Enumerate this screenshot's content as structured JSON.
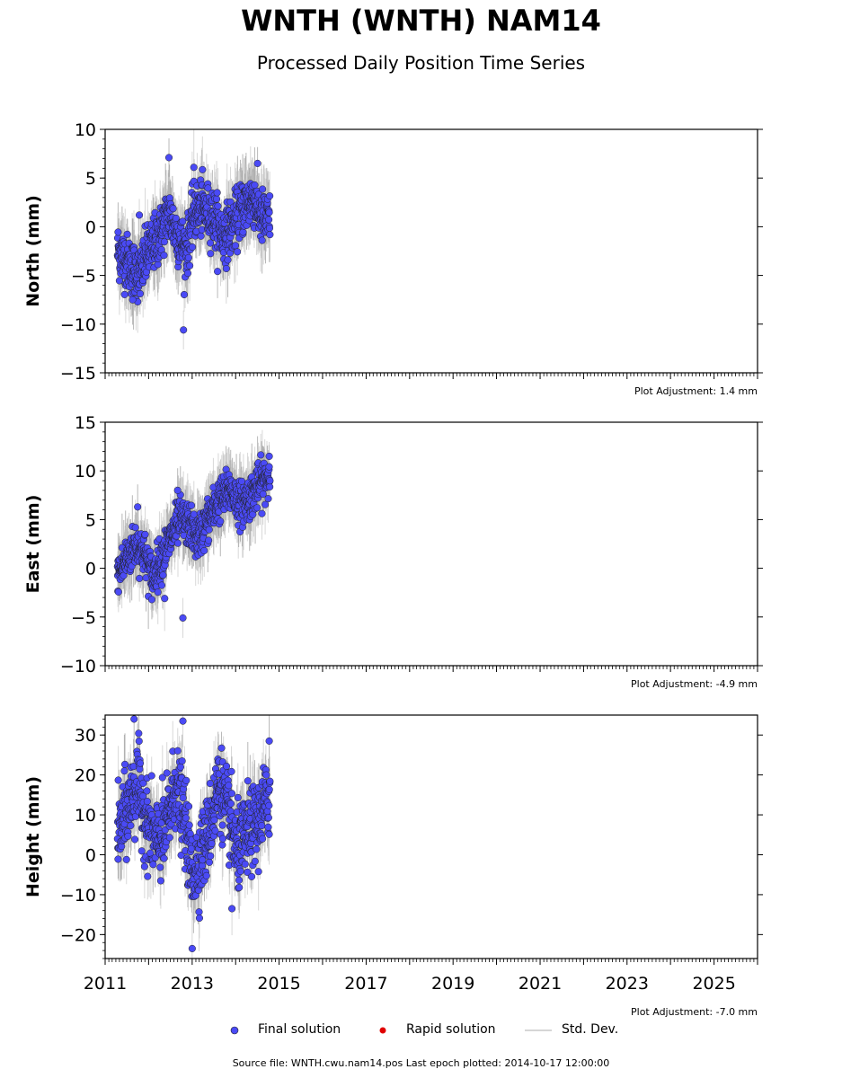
{
  "title": "WNTH (WNTH) NAM14",
  "subtitle": "Processed Daily Position Time Series",
  "source_note": "Source file: WNTH.cwu.nam14.pos  Last epoch plotted: 2014-10-17 12:00:00",
  "legend": {
    "final": "Final solution",
    "rapid": "Rapid solution",
    "std": "Std. Dev."
  },
  "colors": {
    "final": "#4a4af5",
    "rapid": "#e00000",
    "std": "#c8c8c8",
    "point_edge": "#222222"
  },
  "x_tick_labels": [
    "2011",
    "2013",
    "2015",
    "2017",
    "2019",
    "2021",
    "2023",
    "2025"
  ],
  "chart_data": [
    {
      "type": "scatter",
      "ylabel": "North (mm)",
      "ylim": [
        -15,
        10
      ],
      "yticks": [
        -15,
        -10,
        -5,
        0,
        5,
        10
      ],
      "xlim": [
        "2011-01-01",
        "2026-01-01"
      ],
      "adjustment": "Plot Adjustment: 1.4 mm",
      "x_range_data": [
        "2011-04-15",
        "2014-10-17"
      ],
      "trend_points": [
        {
          "x": "2011-04-20",
          "y": -2.5
        },
        {
          "x": "2011-08-01",
          "y": -4.0
        },
        {
          "x": "2011-10-15",
          "y": -5.0
        },
        {
          "x": "2012-01-01",
          "y": -2.5
        },
        {
          "x": "2012-04-01",
          "y": -1.0
        },
        {
          "x": "2012-06-15",
          "y": 1.5
        },
        {
          "x": "2012-09-01",
          "y": -1.0
        },
        {
          "x": "2012-11-15",
          "y": -2.5
        },
        {
          "x": "2013-01-15",
          "y": 1.5
        },
        {
          "x": "2013-04-01",
          "y": 2.0
        },
        {
          "x": "2013-07-01",
          "y": 1.0
        },
        {
          "x": "2013-09-15",
          "y": -1.0
        },
        {
          "x": "2013-12-01",
          "y": 0.0
        },
        {
          "x": "2014-03-01",
          "y": 2.0
        },
        {
          "x": "2014-06-01",
          "y": 3.0
        },
        {
          "x": "2014-08-01",
          "y": 1.0
        },
        {
          "x": "2014-10-17",
          "y": 0.5
        }
      ],
      "outliers": [
        {
          "x": "2012-06-20",
          "y": 7.1
        },
        {
          "x": "2012-10-20",
          "y": -10.6
        },
        {
          "x": "2013-01-15",
          "y": 6.1
        },
        {
          "x": "2011-08-20",
          "y": -7.5
        },
        {
          "x": "2011-10-15",
          "y": 1.2
        }
      ],
      "scatter_sd": 1.4,
      "std_dev_mm": 2.2
    },
    {
      "type": "scatter",
      "ylabel": "East (mm)",
      "ylim": [
        -10,
        15
      ],
      "yticks": [
        -10,
        -5,
        0,
        5,
        10,
        15
      ],
      "xlim": [
        "2011-01-01",
        "2026-01-01"
      ],
      "adjustment": "Plot Adjustment: -4.9 mm",
      "x_range_data": [
        "2011-04-15",
        "2014-10-17"
      ],
      "trend_points": [
        {
          "x": "2011-04-20",
          "y": -0.5
        },
        {
          "x": "2011-07-01",
          "y": 1.0
        },
        {
          "x": "2011-09-15",
          "y": 2.5
        },
        {
          "x": "2011-12-01",
          "y": 1.5
        },
        {
          "x": "2012-02-01",
          "y": -1.0
        },
        {
          "x": "2012-04-15",
          "y": 1.0
        },
        {
          "x": "2012-07-01",
          "y": 3.0
        },
        {
          "x": "2012-09-15",
          "y": 5.0
        },
        {
          "x": "2012-12-01",
          "y": 4.5
        },
        {
          "x": "2013-02-15",
          "y": 3.0
        },
        {
          "x": "2013-05-15",
          "y": 5.0
        },
        {
          "x": "2013-08-15",
          "y": 7.0
        },
        {
          "x": "2013-11-15",
          "y": 8.0
        },
        {
          "x": "2014-02-15",
          "y": 6.5
        },
        {
          "x": "2014-05-15",
          "y": 7.5
        },
        {
          "x": "2014-08-15",
          "y": 9.0
        },
        {
          "x": "2014-10-17",
          "y": 9.5
        }
      ],
      "outliers": [
        {
          "x": "2011-10-01",
          "y": 6.3
        },
        {
          "x": "2012-05-15",
          "y": -3.1
        },
        {
          "x": "2012-10-15",
          "y": -5.1
        },
        {
          "x": "2012-09-01",
          "y": 8.0
        },
        {
          "x": "2014-10-10",
          "y": 11.5
        }
      ],
      "scatter_sd": 1.1,
      "std_dev_mm": 2.0
    },
    {
      "type": "scatter",
      "ylabel": "Height (mm)",
      "ylim": [
        -26,
        35
      ],
      "yticks": [
        -20,
        -10,
        0,
        10,
        20,
        30
      ],
      "xlim": [
        "2011-01-01",
        "2026-01-01"
      ],
      "adjustment": "Plot Adjustment: -7.0 mm",
      "x_range_data": [
        "2011-04-15",
        "2014-10-17"
      ],
      "trend_points": [
        {
          "x": "2011-04-20",
          "y": 5.0
        },
        {
          "x": "2011-07-15",
          "y": 12.0
        },
        {
          "x": "2011-10-01",
          "y": 18.0
        },
        {
          "x": "2011-12-15",
          "y": 8.0
        },
        {
          "x": "2012-03-01",
          "y": 3.0
        },
        {
          "x": "2012-05-15",
          "y": 5.0
        },
        {
          "x": "2012-08-15",
          "y": 18.0
        },
        {
          "x": "2012-11-01",
          "y": 8.0
        },
        {
          "x": "2013-01-01",
          "y": -5.0
        },
        {
          "x": "2013-03-15",
          "y": 0.0
        },
        {
          "x": "2013-05-15",
          "y": 5.0
        },
        {
          "x": "2013-08-15",
          "y": 18.0
        },
        {
          "x": "2013-11-01",
          "y": 10.0
        },
        {
          "x": "2014-01-15",
          "y": 0.0
        },
        {
          "x": "2014-04-01",
          "y": 5.0
        },
        {
          "x": "2014-07-01",
          "y": 8.0
        },
        {
          "x": "2014-10-17",
          "y": 15.0
        }
      ],
      "outliers": [
        {
          "x": "2011-09-01",
          "y": 34.0
        },
        {
          "x": "2012-10-15",
          "y": 33.5
        },
        {
          "x": "2013-01-01",
          "y": -23.5
        },
        {
          "x": "2014-10-10",
          "y": 28.5
        },
        {
          "x": "2013-12-01",
          "y": -13.5
        }
      ],
      "scatter_sd": 5.0,
      "std_dev_mm": 5.5
    }
  ]
}
